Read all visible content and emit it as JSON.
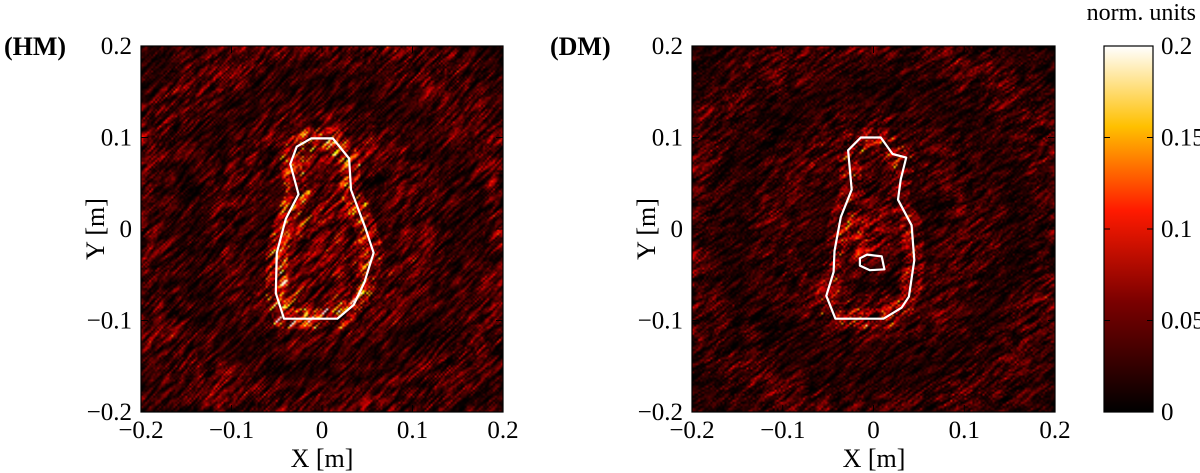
{
  "colorbar": {
    "title": "norm. units",
    "ticks": [
      "0",
      "0.05",
      "0.1",
      "0.15",
      "0.2"
    ],
    "tick_values": [
      0,
      0.05,
      0.1,
      0.15,
      0.2
    ],
    "range": [
      0,
      0.2
    ],
    "colormap": "hot",
    "colors": [
      "#000000",
      "#8b0000",
      "#ff2200",
      "#ffcc00",
      "#ffffff"
    ]
  },
  "chart_data": [
    {
      "type": "heatmap",
      "panel_label": "(HM)",
      "xlabel": "X [m]",
      "ylabel": "Y [m]",
      "xlim": [
        -0.2,
        0.2
      ],
      "ylim": [
        -0.2,
        0.2
      ],
      "xticks": [
        "−0.2",
        "−0.1",
        "0",
        "0.1",
        "0.2"
      ],
      "yticks": [
        "0.2",
        "0.1",
        "0",
        "−0.1",
        "−0.2"
      ],
      "xtick_values": [
        -0.2,
        -0.1,
        0,
        0.1,
        0.2
      ],
      "ytick_values": [
        0.2,
        0.1,
        0,
        -0.1,
        -0.2
      ],
      "contours": [
        [
          [
            -0.012,
            0.099
          ],
          [
            0.012,
            0.099
          ],
          [
            0.03,
            0.077
          ],
          [
            0.032,
            0.043
          ],
          [
            0.048,
            0.001
          ],
          [
            0.057,
            -0.026
          ],
          [
            0.047,
            -0.058
          ],
          [
            0.035,
            -0.083
          ],
          [
            0.017,
            -0.098
          ],
          [
            -0.042,
            -0.098
          ],
          [
            -0.051,
            -0.07
          ],
          [
            -0.05,
            -0.026
          ],
          [
            -0.04,
            0.011
          ],
          [
            -0.026,
            0.038
          ],
          [
            -0.035,
            0.071
          ],
          [
            -0.028,
            0.09
          ]
        ]
      ],
      "hotspot_values": [
        0.2,
        0.15,
        0.12,
        0.1,
        0.08
      ]
    },
    {
      "type": "heatmap",
      "panel_label": "(DM)",
      "xlabel": "X [m]",
      "ylabel": "Y [m]",
      "xlim": [
        -0.2,
        0.2
      ],
      "ylim": [
        -0.2,
        0.2
      ],
      "xticks": [
        "−0.2",
        "−0.1",
        "0",
        "0.1",
        "0.2"
      ],
      "yticks": [
        "0.2",
        "0.1",
        "0",
        "−0.1",
        "−0.2"
      ],
      "xtick_values": [
        -0.2,
        -0.1,
        0,
        0.1,
        0.2
      ],
      "ytick_values": [
        0.2,
        0.1,
        0,
        -0.1,
        -0.2
      ],
      "contours": [
        [
          [
            -0.014,
            0.1
          ],
          [
            0.008,
            0.1
          ],
          [
            0.021,
            0.082
          ],
          [
            0.036,
            0.078
          ],
          [
            0.03,
            0.054
          ],
          [
            0.027,
            0.032
          ],
          [
            0.042,
            0.004
          ],
          [
            0.045,
            -0.034
          ],
          [
            0.039,
            -0.074
          ],
          [
            0.031,
            -0.086
          ],
          [
            0.011,
            -0.098
          ],
          [
            -0.042,
            -0.098
          ],
          [
            -0.052,
            -0.073
          ],
          [
            -0.044,
            -0.047
          ],
          [
            -0.043,
            -0.024
          ],
          [
            -0.036,
            0.013
          ],
          [
            -0.024,
            0.043
          ],
          [
            -0.028,
            0.086
          ]
        ],
        [
          [
            -0.015,
            -0.032
          ],
          [
            -0.007,
            -0.028
          ],
          [
            0.009,
            -0.03
          ],
          [
            0.012,
            -0.044
          ],
          [
            -0.004,
            -0.045
          ],
          [
            -0.015,
            -0.04
          ]
        ]
      ],
      "hotspot_values": [
        0.18,
        0.14,
        0.1,
        0.08
      ]
    }
  ]
}
